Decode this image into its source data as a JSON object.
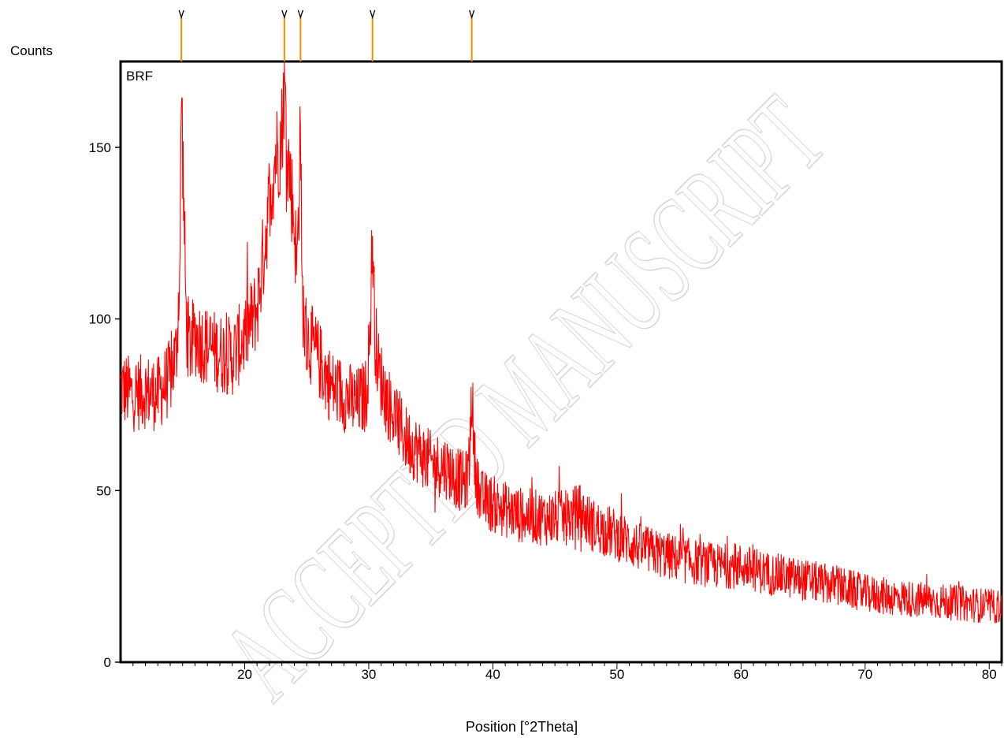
{
  "chart_data": {
    "type": "line",
    "sample_label": "BRF",
    "xlabel": "Position [°2Theta]",
    "ylabel": "Counts",
    "xlim": [
      10,
      81
    ],
    "ylim": [
      0,
      175
    ],
    "x_ticks": [
      20,
      30,
      40,
      50,
      60,
      70,
      80
    ],
    "y_ticks": [
      0,
      50,
      100,
      150
    ],
    "grid": false,
    "line_color": "#ff0000",
    "marker_color": "#f28c00",
    "peak_markers": [
      14.9,
      23.2,
      24.5,
      30.3,
      38.3
    ],
    "watermark": "ACCEPTED MANUSCRIPT",
    "series": [
      {
        "x": [
          10,
          11,
          12,
          13,
          14,
          14.5,
          14.8,
          14.9,
          15.0,
          15.1,
          15.3,
          15.6,
          16,
          17,
          18,
          19,
          20,
          21,
          21.5,
          22,
          22.5,
          22.8,
          23.0,
          23.2,
          23.4,
          23.7,
          24.0,
          24.2,
          24.4,
          24.5,
          24.6,
          24.8,
          25,
          26,
          27,
          28,
          29,
          29.8,
          30.1,
          30.3,
          30.5,
          30.8,
          31.5,
          33,
          35,
          36.2,
          37,
          37.8,
          38.1,
          38.3,
          38.5,
          38.9,
          40,
          42,
          44,
          46,
          47,
          48,
          50,
          52,
          55,
          58,
          60,
          62,
          65,
          68,
          70,
          72,
          75,
          78,
          81
        ],
        "values": [
          80,
          78,
          79,
          78,
          83,
          90,
          118,
          168,
          150,
          132,
          98,
          92,
          95,
          92,
          90,
          89,
          95,
          103,
          118,
          135,
          148,
          150,
          155,
          170,
          150,
          140,
          128,
          114,
          138,
          165,
          110,
          98,
          95,
          88,
          80,
          78,
          75,
          78,
          95,
          125,
          96,
          85,
          76,
          65,
          58,
          57,
          54,
          52,
          58,
          80,
          60,
          48,
          46,
          43,
          42,
          42,
          44,
          40,
          37,
          33,
          30,
          28,
          28,
          26,
          24,
          22,
          20,
          19,
          18,
          17,
          16
        ]
      }
    ]
  }
}
